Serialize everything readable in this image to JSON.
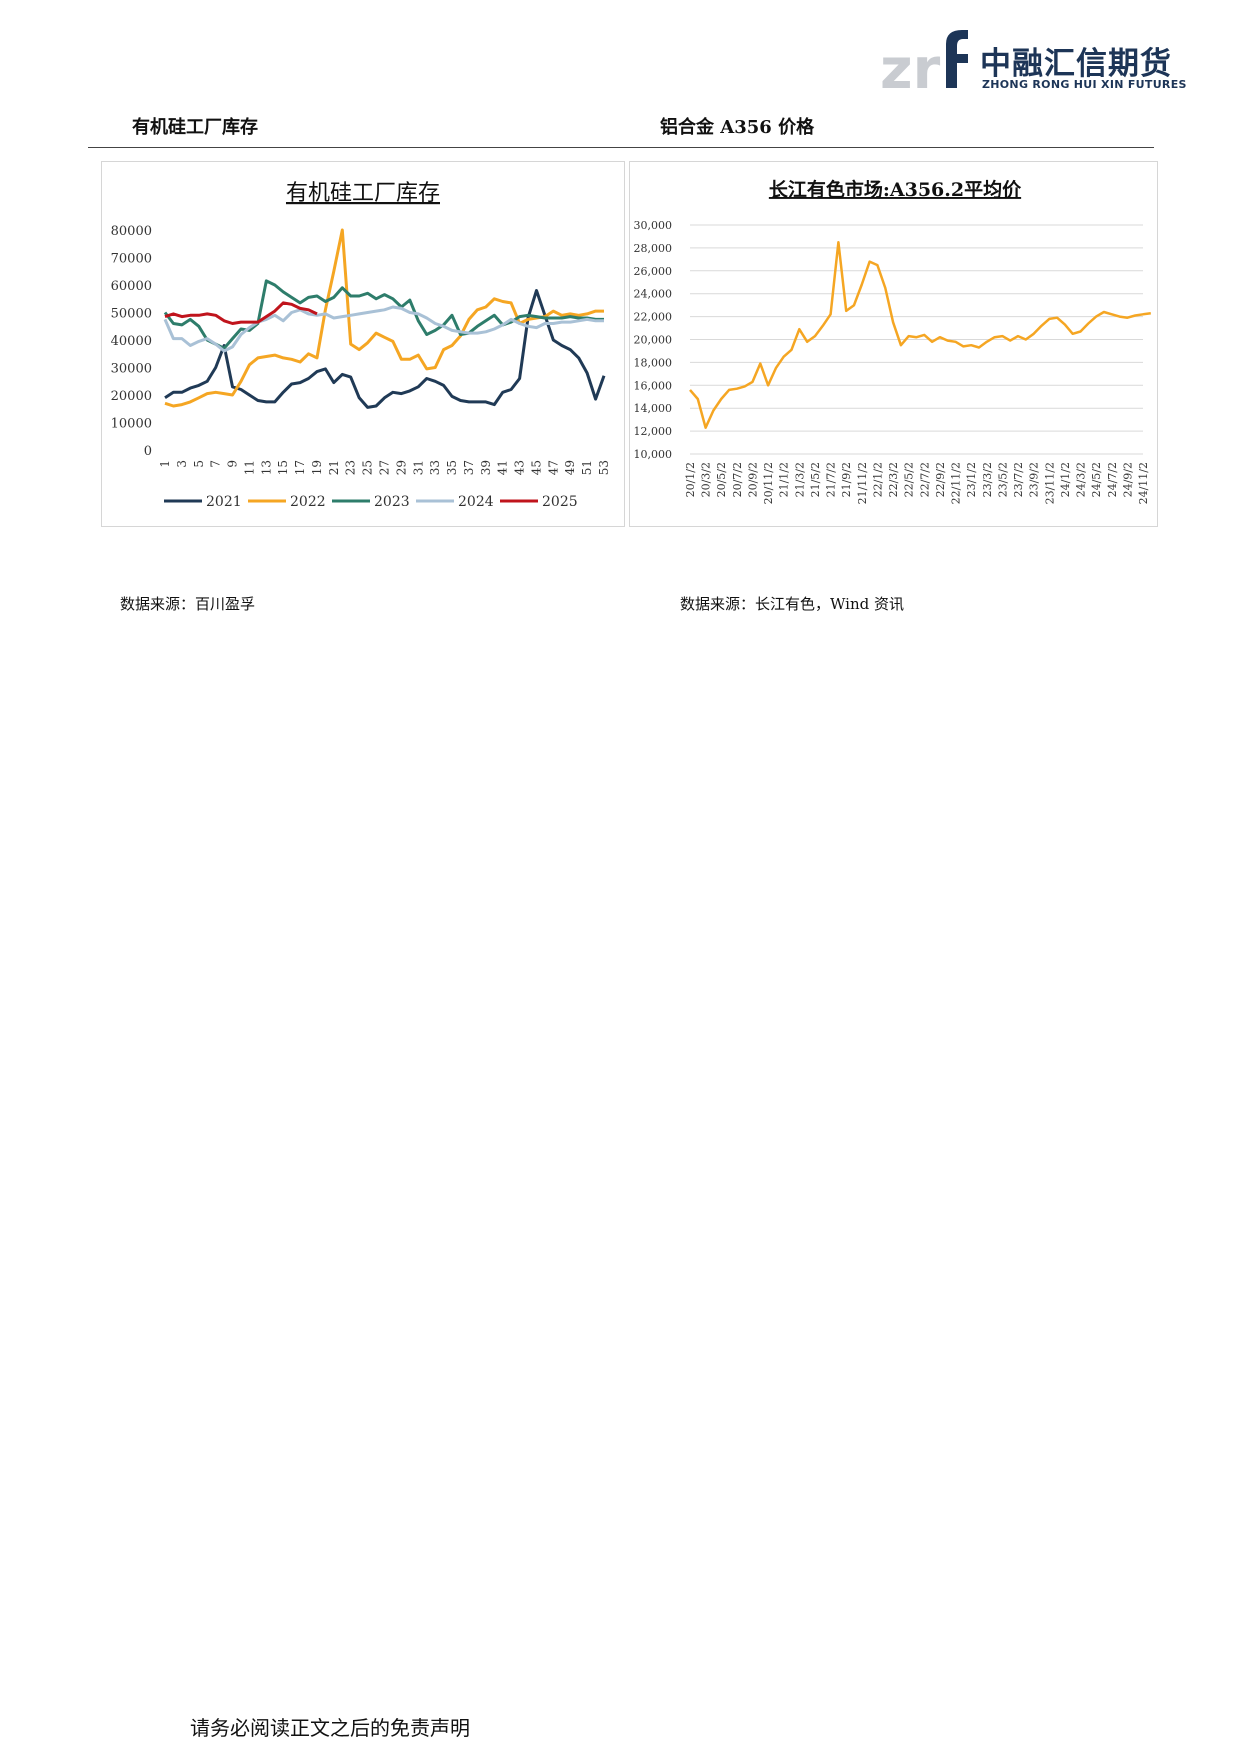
{
  "header": {
    "logo_cn": "中融汇信期货",
    "logo_en": "ZHONG RONG HUI XIN FUTURES",
    "left_section_title": "有机硅工厂库存",
    "right_section_title": "铝合金 A356 价格"
  },
  "sources": {
    "left": "数据来源：百川盈孚",
    "right": "数据来源：长江有色，Wind 资讯"
  },
  "footer": "请务必阅读正文之后的免责声明",
  "colors": {
    "s2021": "#203a56",
    "s2022": "#f5a623",
    "s2023": "#2e7d6b",
    "s2024": "#a9c1d6",
    "s2025": "#c0141c",
    "price": "#f5a623"
  },
  "chart_data": [
    {
      "type": "line",
      "title": "有机硅工厂库存",
      "x_start": 1,
      "x_end": 53,
      "xticks": [
        "1",
        "3",
        "5",
        "7",
        "9",
        "11",
        "13",
        "15",
        "17",
        "19",
        "21",
        "23",
        "25",
        "27",
        "29",
        "31",
        "33",
        "35",
        "37",
        "39",
        "41",
        "43",
        "45",
        "47",
        "49",
        "51",
        "53"
      ],
      "ylim": [
        0,
        80000
      ],
      "yticks": [
        "0",
        "10000",
        "20000",
        "30000",
        "40000",
        "50000",
        "60000",
        "70000",
        "80000"
      ],
      "legend_position": "bottom",
      "series": [
        {
          "name": "2021",
          "color_key": "s2021",
          "values": [
            19000,
            21000,
            21000,
            22500,
            23500,
            25000,
            30000,
            38000,
            23000,
            22000,
            20000,
            18000,
            17500,
            17500,
            21000,
            24000,
            24500,
            26000,
            28500,
            29500,
            24500,
            27500,
            26500,
            19000,
            15500,
            16000,
            19000,
            21000,
            20500,
            21500,
            23000,
            26000,
            25000,
            23500,
            19500,
            18000,
            17500,
            17500,
            17500,
            16500,
            21000,
            22000,
            26000,
            48000,
            58000,
            49000,
            40000,
            38000,
            36500,
            33500,
            28000,
            18500,
            27000
          ]
        },
        {
          "name": "2022",
          "color_key": "s2022",
          "values": [
            17000,
            16000,
            16500,
            17500,
            19000,
            20500,
            21000,
            20500,
            20000,
            25000,
            31000,
            33500,
            34000,
            34500,
            33500,
            33000,
            32000,
            35000,
            33500,
            51000,
            65000,
            80000,
            38500,
            36500,
            39000,
            42500,
            41000,
            39500,
            33000,
            33000,
            34500,
            29500,
            30000,
            36500,
            38000,
            41500,
            47500,
            51000,
            52000,
            55000,
            54000,
            53500,
            46000,
            47500,
            48000,
            48500,
            50500,
            49000,
            49500,
            49000,
            49500,
            50500,
            50500
          ]
        },
        {
          "name": "2023",
          "color_key": "s2023",
          "values": [
            50000,
            46000,
            45500,
            47500,
            45000,
            40000,
            38500,
            37000,
            40500,
            44000,
            43500,
            46000,
            61500,
            60000,
            57500,
            55500,
            53500,
            55500,
            56000,
            54000,
            55500,
            59000,
            56000,
            56000,
            57000,
            55000,
            56500,
            55000,
            52000,
            54500,
            47000,
            42000,
            43500,
            45500,
            49000,
            42000,
            42500,
            45000,
            47000,
            49000,
            45500,
            46500,
            48500,
            49000,
            48500,
            48000,
            48000,
            48000,
            48500,
            48000,
            48000,
            47500,
            47500
          ]
        },
        {
          "name": "2024",
          "color_key": "s2024",
          "values": [
            47500,
            40500,
            40500,
            38000,
            39500,
            40500,
            38500,
            36000,
            37500,
            42000,
            44500,
            46500,
            47500,
            49000,
            47000,
            50000,
            51000,
            49500,
            49000,
            49500,
            48000,
            48500,
            49000,
            49500,
            50000,
            50500,
            51000,
            52000,
            51500,
            50000,
            49500,
            48000,
            46000,
            45000,
            43500,
            43000,
            42500,
            42500,
            43000,
            44000,
            45500,
            47500,
            46000,
            45000,
            44500,
            46000,
            46000,
            46500,
            46500,
            47000,
            47500,
            47000,
            47000
          ]
        },
        {
          "name": "2025",
          "color_key": "s2025",
          "values": [
            48500,
            49500,
            48500,
            49000,
            49000,
            49500,
            49000,
            47000,
            46000,
            46500,
            46500,
            46500,
            48500,
            50500,
            53500,
            53000,
            51500,
            51000,
            49500
          ]
        }
      ]
    },
    {
      "type": "line",
      "title": "长江有色市场:A356.2平均价",
      "ylim": [
        10000,
        30000
      ],
      "yticks": [
        "10,000",
        "12,000",
        "14,000",
        "16,000",
        "18,000",
        "20,000",
        "22,000",
        "24,000",
        "26,000",
        "28,000",
        "30,000"
      ],
      "xticks": [
        "20/1/2",
        "20/3/2",
        "20/5/2",
        "20/7/2",
        "20/9/2",
        "20/11/2",
        "21/1/2",
        "21/3/2",
        "21/5/2",
        "21/7/2",
        "21/9/2",
        "21/11/2",
        "22/1/2",
        "22/3/2",
        "22/5/2",
        "22/7/2",
        "22/9/2",
        "22/11/2",
        "23/1/2",
        "23/3/2",
        "23/5/2",
        "23/7/2",
        "23/9/2",
        "23/11/2",
        "24/1/2",
        "24/3/2",
        "24/5/2",
        "24/7/2",
        "24/9/2",
        "24/11/2"
      ],
      "series": [
        {
          "color_key": "price",
          "x": [
            0,
            0.5,
            1,
            1.5,
            2,
            2.5,
            3,
            3.5,
            4,
            4.5,
            5,
            5.5,
            6,
            6.5,
            7,
            7.5,
            8,
            8.5,
            9,
            9.5,
            10,
            10.5,
            11,
            11.5,
            12,
            12.5,
            13,
            13.5,
            14,
            14.5,
            15,
            15.5,
            16,
            16.5,
            17,
            17.5,
            18,
            18.5,
            19,
            19.5,
            20,
            20.5,
            21,
            21.5,
            22,
            22.5,
            23,
            23.5,
            24,
            24.5,
            25,
            25.5,
            26,
            26.5,
            27,
            27.5,
            28,
            28.5,
            29,
            29.5
          ],
          "values": [
            15600,
            14800,
            12300,
            13800,
            14800,
            15600,
            15700,
            15900,
            16300,
            17900,
            16000,
            17500,
            18500,
            19100,
            20900,
            19800,
            20300,
            21200,
            22200,
            28500,
            22500,
            23000,
            24800,
            26800,
            26500,
            24500,
            21500,
            19500,
            20300,
            20200,
            20400,
            19800,
            20200,
            19900,
            19800,
            19400,
            19500,
            19300,
            19800,
            20200,
            20300,
            19900,
            20300,
            20000,
            20500,
            21200,
            21800,
            21900,
            21300,
            20500,
            20700,
            21400,
            22000,
            22400,
            22200,
            22000,
            21900,
            22100,
            22200,
            22300
          ]
        }
      ]
    }
  ]
}
